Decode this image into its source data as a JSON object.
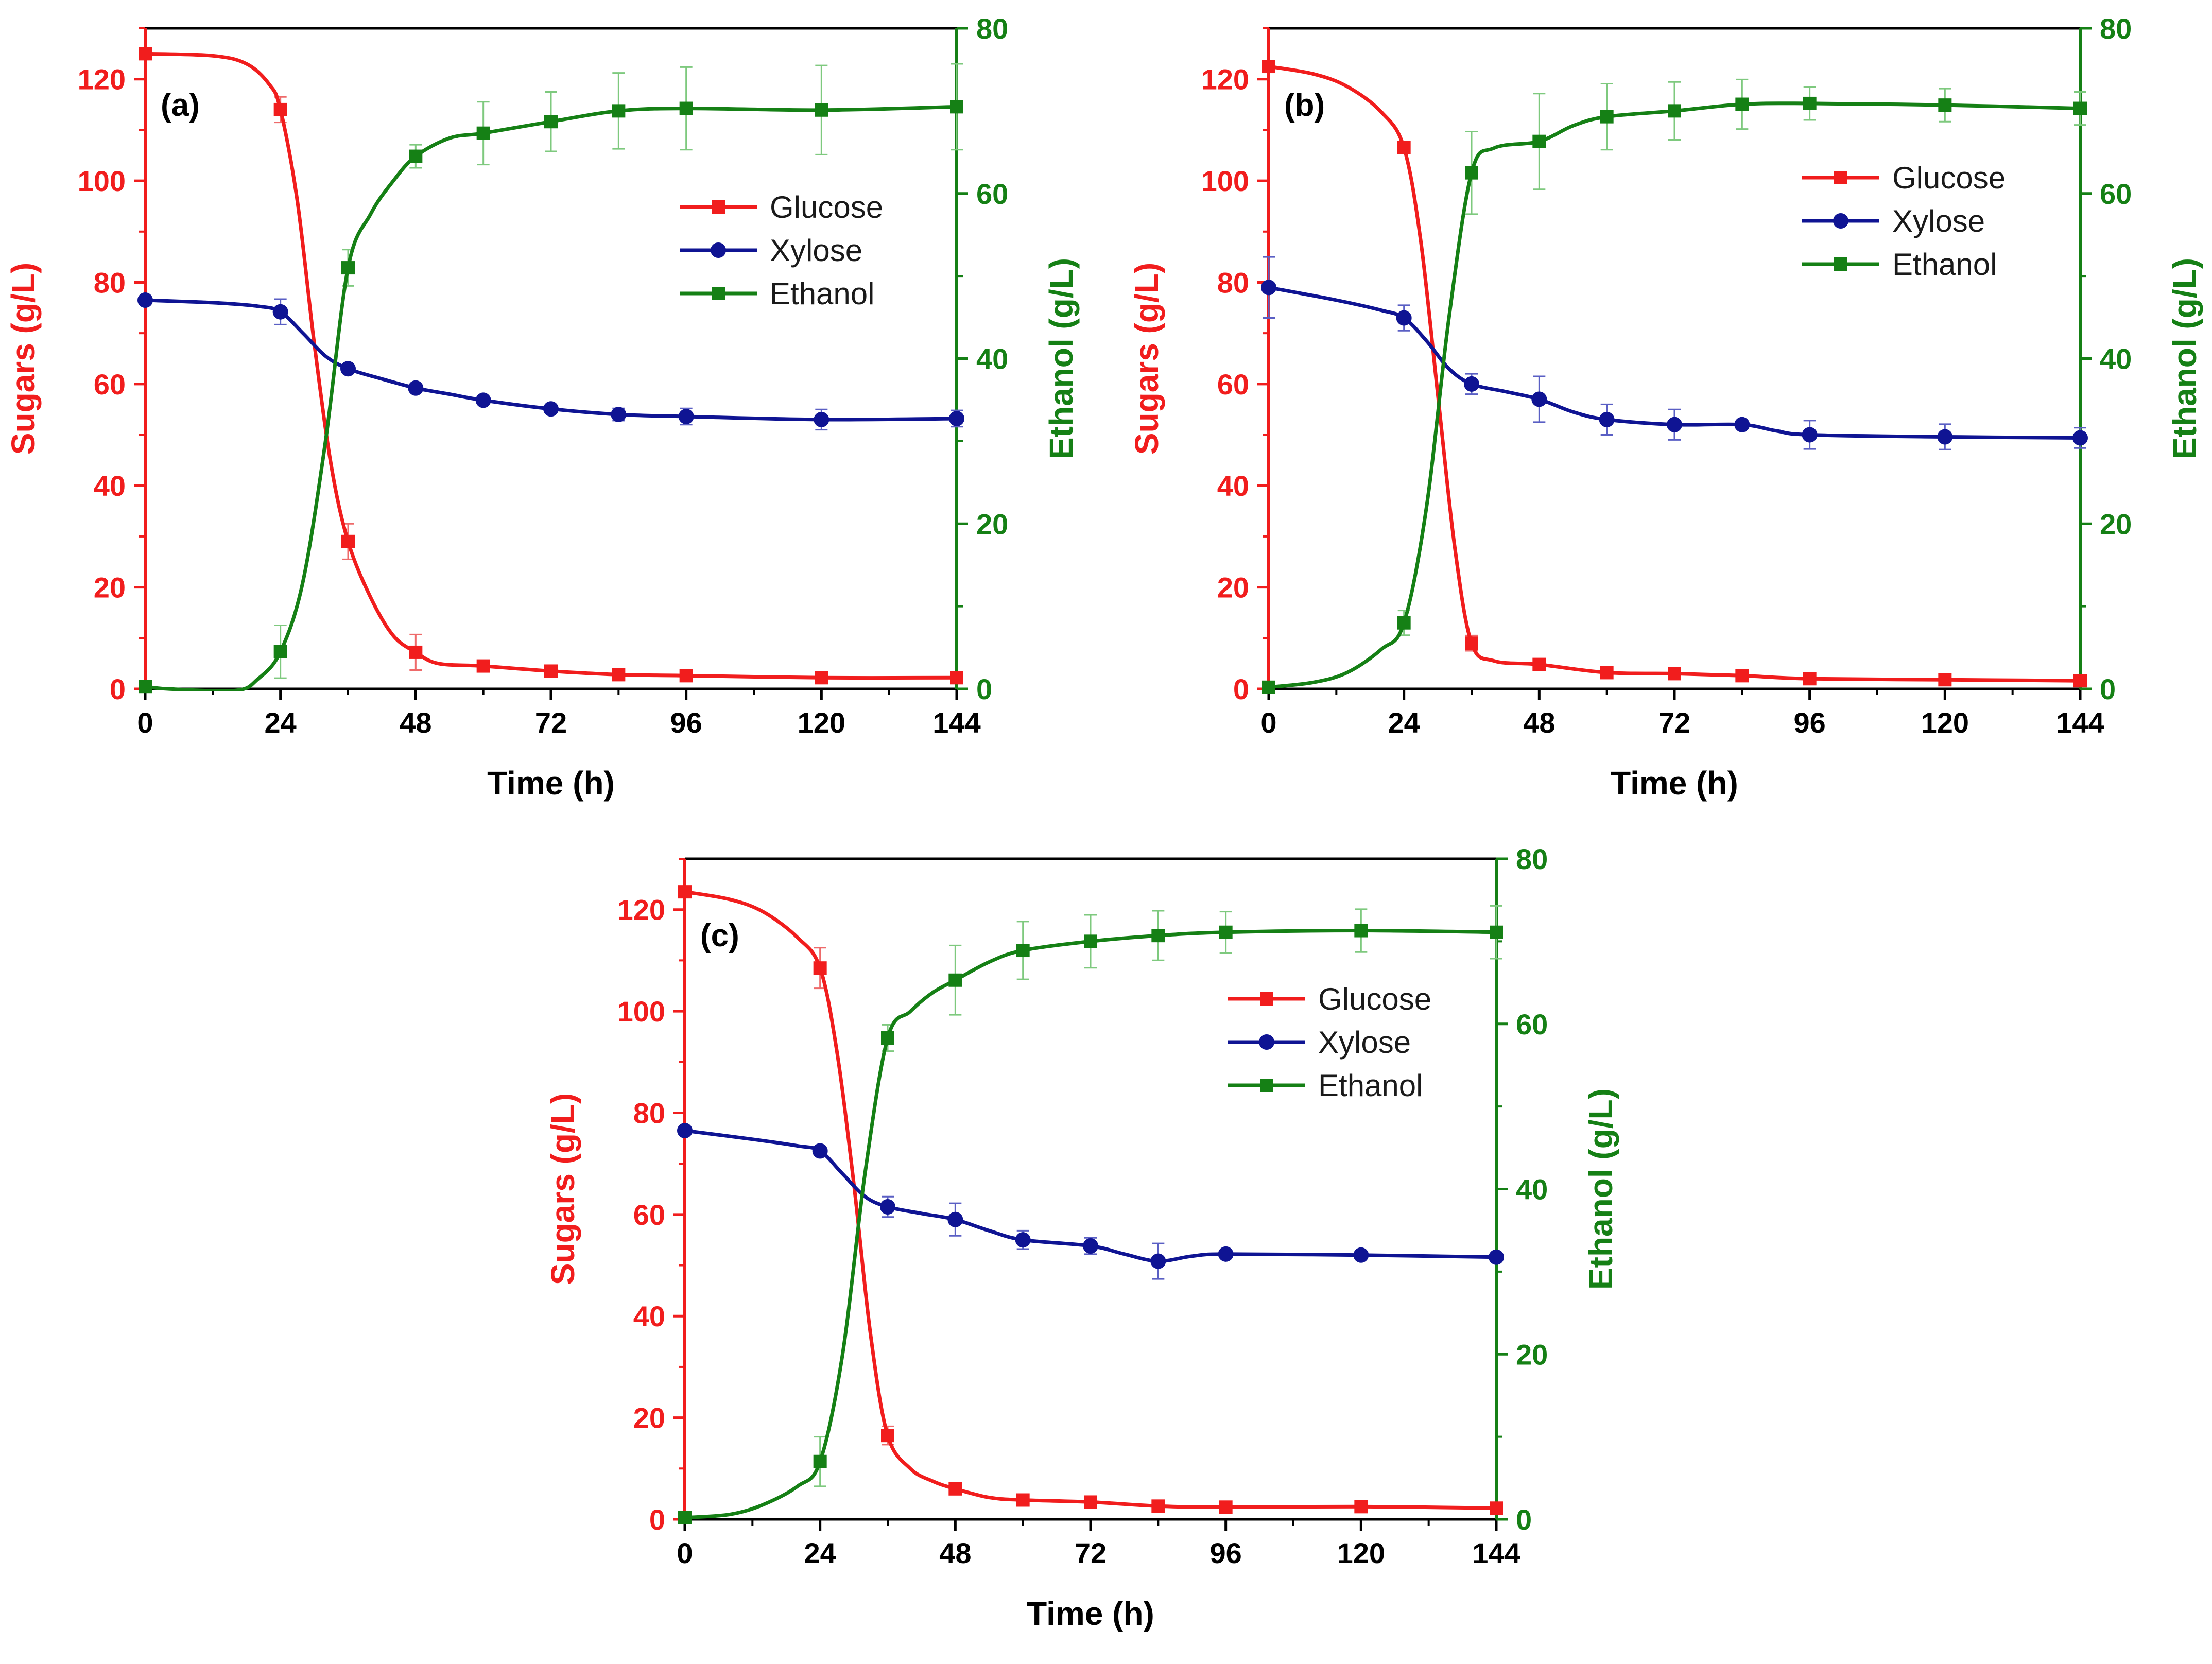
{
  "colors": {
    "glucose": "#f11d1d",
    "xylose": "#0f1493",
    "ethanol": "#158015",
    "left_axis": "#f11d1d",
    "right_axis": "#158015",
    "frame": "#000000",
    "glucose_err": "#ee6a6a",
    "xylose_err": "#5a5fc4",
    "ethanol_err": "#7ec97e"
  },
  "chart_data": [
    {
      "type": "line",
      "panel_label": "(a)",
      "xlabel": "Time (h)",
      "ylabel_left": "Sugars (g/L)",
      "ylabel_right": "Ethanol (g/L)",
      "xlim": [
        0,
        144
      ],
      "ylim_left": [
        0,
        130
      ],
      "ylim_right": [
        0,
        80
      ],
      "xticks": [
        0,
        24,
        48,
        72,
        96,
        120,
        144
      ],
      "yticks_left": [
        0,
        20,
        40,
        60,
        80,
        100,
        120
      ],
      "yticks_right": [
        0,
        20,
        40,
        60,
        80
      ],
      "legend": [
        "Glucose",
        "Xylose",
        "Ethanol"
      ],
      "series": [
        {
          "name": "Glucose",
          "axis": "left",
          "x": [
            0,
            24,
            36,
            48,
            60,
            72,
            84,
            96,
            120,
            144
          ],
          "values": [
            125,
            114,
            29,
            7.2,
            4.5,
            3.5,
            2.8,
            2.6,
            2.2,
            2.2
          ],
          "errors": [
            0.5,
            2.5,
            3.5,
            3.5,
            0.8,
            0.5,
            0.3,
            0.3,
            0.3,
            0.3
          ],
          "curve": [
            [
              0,
              125
            ],
            [
              12,
              124.6
            ],
            [
              18,
              123
            ],
            [
              22,
              119
            ],
            [
              24,
              114
            ],
            [
              27,
              96
            ],
            [
              30,
              68
            ],
            [
              33,
              44
            ],
            [
              36,
              29
            ],
            [
              40,
              18
            ],
            [
              44,
              10.5
            ],
            [
              48,
              7.2
            ],
            [
              52,
              5
            ],
            [
              60,
              4.5
            ],
            [
              72,
              3.5
            ],
            [
              84,
              2.8
            ],
            [
              96,
              2.6
            ],
            [
              120,
              2.2
            ],
            [
              144,
              2.2
            ]
          ]
        },
        {
          "name": "Xylose",
          "axis": "left",
          "x": [
            0,
            24,
            36,
            48,
            60,
            72,
            84,
            96,
            120,
            144
          ],
          "values": [
            76.5,
            74.2,
            63,
            59.2,
            56.8,
            55.1,
            54,
            53.6,
            53,
            53.2
          ],
          "errors": [
            0.5,
            2.5,
            0.8,
            0.6,
            0.6,
            0.6,
            1.2,
            1.6,
            2.0,
            1.6
          ],
          "curve": [
            [
              0,
              76.5
            ],
            [
              12,
              76
            ],
            [
              20,
              75.3
            ],
            [
              24,
              74.2
            ],
            [
              28,
              70
            ],
            [
              32,
              65.5
            ],
            [
              36,
              63
            ],
            [
              42,
              61
            ],
            [
              48,
              59.2
            ],
            [
              54,
              58
            ],
            [
              60,
              56.8
            ],
            [
              72,
              55.1
            ],
            [
              84,
              54
            ],
            [
              96,
              53.6
            ],
            [
              120,
              53
            ],
            [
              144,
              53.2
            ]
          ]
        },
        {
          "name": "Ethanol",
          "axis": "right",
          "x": [
            0,
            24,
            36,
            48,
            60,
            72,
            84,
            96,
            120,
            144
          ],
          "values": [
            0.3,
            4.5,
            51,
            64.5,
            67.3,
            68.7,
            70,
            70.3,
            70.1,
            70.5
          ],
          "errors": [
            0.3,
            3.2,
            2.2,
            1.4,
            3.8,
            3.6,
            4.6,
            5.0,
            5.4,
            5.2
          ],
          "curve": [
            [
              0,
              0.3
            ],
            [
              4,
              0
            ],
            [
              16,
              -0.2
            ],
            [
              20,
              1.2
            ],
            [
              24,
              4.5
            ],
            [
              28,
              13
            ],
            [
              32,
              30
            ],
            [
              36,
              51
            ],
            [
              40,
              57.5
            ],
            [
              44,
              61.5
            ],
            [
              48,
              64.5
            ],
            [
              54,
              66.7
            ],
            [
              60,
              67.3
            ],
            [
              72,
              68.7
            ],
            [
              84,
              70
            ],
            [
              96,
              70.3
            ],
            [
              120,
              70.1
            ],
            [
              144,
              70.5
            ]
          ]
        }
      ]
    },
    {
      "type": "line",
      "panel_label": "(b)",
      "xlabel": "Time (h)",
      "ylabel_left": "Sugars (g/L)",
      "ylabel_right": "Ethanol (g/L)",
      "xlim": [
        0,
        144
      ],
      "ylim_left": [
        0,
        130
      ],
      "ylim_right": [
        0,
        80
      ],
      "xticks": [
        0,
        24,
        48,
        72,
        96,
        120,
        144
      ],
      "yticks_left": [
        0,
        20,
        40,
        60,
        80,
        100,
        120
      ],
      "yticks_right": [
        0,
        20,
        40,
        60,
        80
      ],
      "legend": [
        "Glucose",
        "Xylose",
        "Ethanol"
      ],
      "series": [
        {
          "name": "Glucose",
          "axis": "left",
          "x": [
            0,
            24,
            36,
            48,
            60,
            72,
            84,
            96,
            120,
            144
          ],
          "values": [
            122.5,
            106.5,
            9,
            4.8,
            3.2,
            3,
            2.6,
            2,
            1.8,
            1.6
          ],
          "errors": [
            0.5,
            1.0,
            1.5,
            0.6,
            0.4,
            0.4,
            0.4,
            0.3,
            0.3,
            0.3
          ],
          "curve": [
            [
              0,
              122.5
            ],
            [
              8,
              121
            ],
            [
              14,
              118.5
            ],
            [
              20,
              113.5
            ],
            [
              24,
              106.5
            ],
            [
              27,
              88
            ],
            [
              30,
              58
            ],
            [
              33,
              28
            ],
            [
              36,
              9
            ],
            [
              40,
              5.5
            ],
            [
              48,
              4.8
            ],
            [
              60,
              3.2
            ],
            [
              72,
              3
            ],
            [
              84,
              2.6
            ],
            [
              96,
              2
            ],
            [
              120,
              1.8
            ],
            [
              144,
              1.6
            ]
          ]
        },
        {
          "name": "Xylose",
          "axis": "left",
          "x": [
            0,
            24,
            36,
            48,
            60,
            72,
            84,
            96,
            120,
            144
          ],
          "values": [
            79,
            73,
            60,
            57,
            53,
            52,
            52,
            50,
            49.6,
            49.4
          ],
          "errors": [
            6.0,
            2.5,
            2.0,
            4.5,
            3.0,
            3.0,
            0.8,
            2.8,
            2.5,
            2.0
          ],
          "curve": [
            [
              0,
              79
            ],
            [
              12,
              76.5
            ],
            [
              20,
              74.5
            ],
            [
              24,
              73
            ],
            [
              28,
              68.5
            ],
            [
              32,
              63
            ],
            [
              36,
              60
            ],
            [
              42,
              58.5
            ],
            [
              48,
              57
            ],
            [
              54,
              54.5
            ],
            [
              60,
              53
            ],
            [
              72,
              52
            ],
            [
              84,
              52
            ],
            [
              90,
              50.8
            ],
            [
              96,
              50
            ],
            [
              120,
              49.6
            ],
            [
              144,
              49.4
            ]
          ]
        },
        {
          "name": "Ethanol",
          "axis": "right",
          "x": [
            0,
            24,
            36,
            48,
            60,
            72,
            84,
            96,
            120,
            144
          ],
          "values": [
            0.2,
            8,
            62.5,
            66.3,
            69.3,
            70,
            70.8,
            70.9,
            70.7,
            70.3
          ],
          "errors": [
            0.2,
            1.5,
            5.0,
            5.8,
            4.0,
            3.5,
            3.0,
            2.0,
            2.0,
            2.0
          ],
          "curve": [
            [
              0,
              0.2
            ],
            [
              8,
              0.8
            ],
            [
              14,
              2
            ],
            [
              20,
              4.8
            ],
            [
              24,
              8
            ],
            [
              28,
              22
            ],
            [
              32,
              45
            ],
            [
              36,
              62.5
            ],
            [
              40,
              65.5
            ],
            [
              48,
              66.3
            ],
            [
              54,
              68.2
            ],
            [
              60,
              69.3
            ],
            [
              72,
              70
            ],
            [
              84,
              70.8
            ],
            [
              96,
              70.9
            ],
            [
              120,
              70.7
            ],
            [
              144,
              70.3
            ]
          ]
        }
      ]
    },
    {
      "type": "line",
      "panel_label": "(c)",
      "xlabel": "Time (h)",
      "ylabel_left": "Sugars (g/L)",
      "ylabel_right": "Ethanol (g/L)",
      "xlim": [
        0,
        144
      ],
      "ylim_left": [
        0,
        130
      ],
      "ylim_right": [
        0,
        80
      ],
      "xticks": [
        0,
        24,
        48,
        72,
        96,
        120,
        144
      ],
      "yticks_left": [
        0,
        20,
        40,
        60,
        80,
        100,
        120
      ],
      "yticks_right": [
        0,
        20,
        40,
        60,
        80
      ],
      "legend": [
        "Glucose",
        "Xylose",
        "Ethanol"
      ],
      "series": [
        {
          "name": "Glucose",
          "axis": "left",
          "x": [
            0,
            24,
            36,
            48,
            60,
            72,
            84,
            96,
            120,
            144
          ],
          "values": [
            123.5,
            108.5,
            16.5,
            6,
            3.8,
            3.4,
            2.6,
            2.4,
            2.5,
            2.2
          ],
          "errors": [
            0.5,
            4.0,
            1.8,
            0.5,
            0.4,
            0.4,
            0.3,
            0.3,
            0.3,
            0.3
          ],
          "curve": [
            [
              0,
              123.5
            ],
            [
              8,
              122
            ],
            [
              14,
              119.5
            ],
            [
              20,
              114.5
            ],
            [
              24,
              108.5
            ],
            [
              27,
              92
            ],
            [
              30,
              66
            ],
            [
              33,
              36
            ],
            [
              36,
              16.5
            ],
            [
              40,
              10
            ],
            [
              44,
              7.5
            ],
            [
              48,
              6
            ],
            [
              54,
              4.3
            ],
            [
              60,
              3.8
            ],
            [
              72,
              3.4
            ],
            [
              84,
              2.6
            ],
            [
              96,
              2.4
            ],
            [
              120,
              2.5
            ],
            [
              144,
              2.2
            ]
          ]
        },
        {
          "name": "Xylose",
          "axis": "left",
          "x": [
            0,
            24,
            36,
            48,
            60,
            72,
            84,
            96,
            120,
            144
          ],
          "values": [
            76.5,
            72.5,
            61.5,
            59,
            55,
            53.8,
            50.8,
            52.2,
            52,
            51.6
          ],
          "errors": [
            0.5,
            0.8,
            2.0,
            3.2,
            1.8,
            1.6,
            3.5,
            0.5,
            0.5,
            0.5
          ],
          "curve": [
            [
              0,
              76.5
            ],
            [
              12,
              74.8
            ],
            [
              20,
              73.5
            ],
            [
              24,
              72.5
            ],
            [
              28,
              68
            ],
            [
              32,
              63.5
            ],
            [
              36,
              61.5
            ],
            [
              42,
              60.2
            ],
            [
              48,
              59
            ],
            [
              54,
              56.8
            ],
            [
              60,
              55
            ],
            [
              72,
              53.8
            ],
            [
              78,
              52.2
            ],
            [
              84,
              50.8
            ],
            [
              90,
              51.8
            ],
            [
              96,
              52.2
            ],
            [
              120,
              52
            ],
            [
              144,
              51.6
            ]
          ]
        },
        {
          "name": "Ethanol",
          "axis": "right",
          "x": [
            0,
            24,
            36,
            48,
            60,
            72,
            84,
            96,
            120,
            144
          ],
          "values": [
            0.2,
            7,
            58.3,
            65.3,
            68.9,
            70,
            70.7,
            71.1,
            71.3,
            71.1
          ],
          "errors": [
            0.2,
            3.0,
            1.6,
            4.2,
            3.5,
            3.2,
            3.0,
            2.5,
            2.6,
            3.2
          ],
          "curve": [
            [
              0,
              0.2
            ],
            [
              8,
              0.6
            ],
            [
              14,
              1.8
            ],
            [
              20,
              4
            ],
            [
              24,
              7
            ],
            [
              28,
              20
            ],
            [
              32,
              42
            ],
            [
              36,
              58.3
            ],
            [
              40,
              61.5
            ],
            [
              44,
              63.8
            ],
            [
              48,
              65.3
            ],
            [
              54,
              67.5
            ],
            [
              60,
              68.9
            ],
            [
              72,
              70
            ],
            [
              84,
              70.7
            ],
            [
              96,
              71.1
            ],
            [
              120,
              71.3
            ],
            [
              144,
              71.1
            ]
          ]
        }
      ]
    }
  ]
}
